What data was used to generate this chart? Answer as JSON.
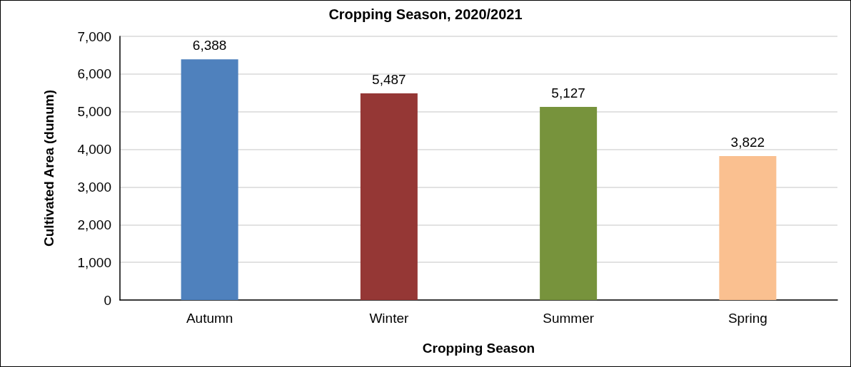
{
  "chart_data": {
    "type": "bar",
    "title": "Cropping Season, 2020/2021",
    "xlabel": "Cropping Season",
    "ylabel": "Cultivated Area (dunum)",
    "categories": [
      "Autumn",
      "Winter",
      "Summer",
      "Spring"
    ],
    "values": [
      6388,
      5487,
      5127,
      3822
    ],
    "colors": [
      "#4f81bd",
      "#953735",
      "#77933c",
      "#fac090"
    ],
    "value_labels": [
      "6,388",
      "5,487",
      "5,127",
      "3,822"
    ],
    "ylim": [
      0,
      7000
    ],
    "yticks": [
      {
        "value": 0,
        "label": "0"
      },
      {
        "value": 1000,
        "label": "1,000"
      },
      {
        "value": 2000,
        "label": "2,000"
      },
      {
        "value": 3000,
        "label": "3,000"
      },
      {
        "value": 4000,
        "label": "4,000"
      },
      {
        "value": 5000,
        "label": "5,000"
      },
      {
        "value": 6000,
        "label": "6,000"
      },
      {
        "value": 7000,
        "label": "7,000"
      }
    ],
    "grid": "y"
  }
}
